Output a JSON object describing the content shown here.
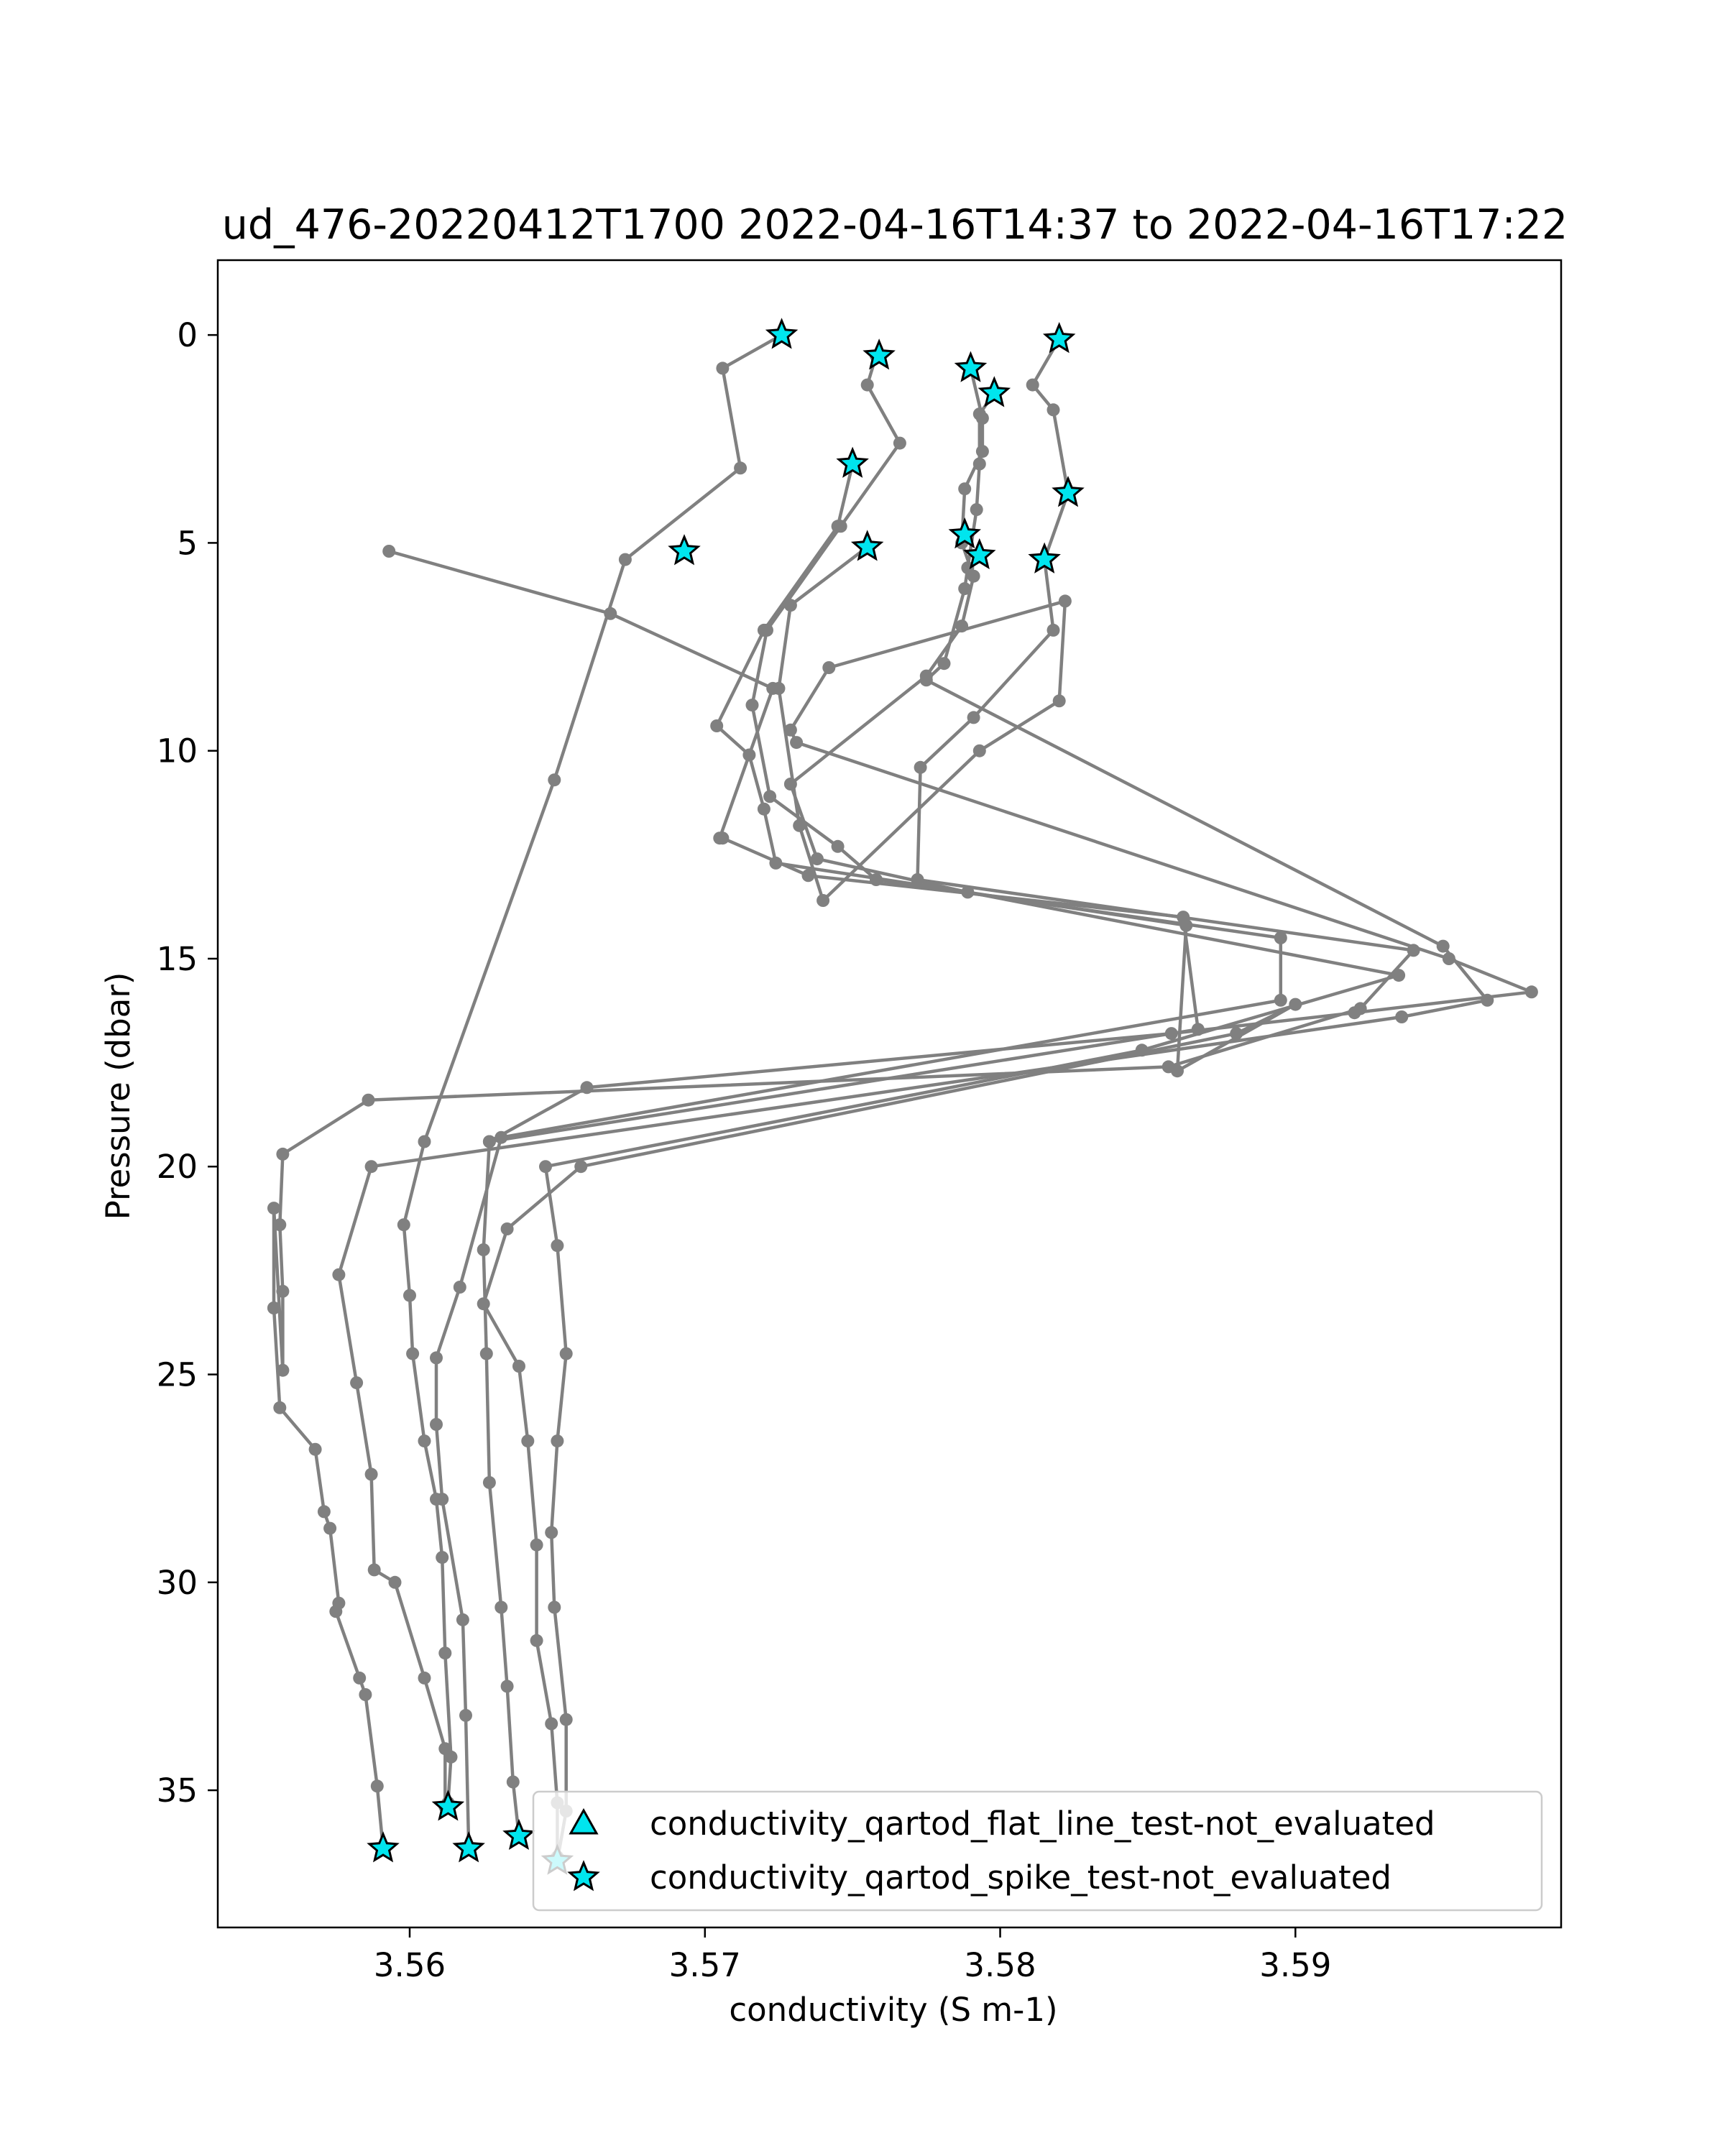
{
  "chart_data": {
    "type": "line",
    "title": "ud_476-20220412T1700 2022-04-16T14:37 to 2022-04-16T17:22",
    "xlabel": "conductivity (S m-1)",
    "ylabel": "Pressure (dbar)",
    "xlim": [
      3.5535,
      3.599
    ],
    "ylim": [
      38.3,
      -1.8
    ],
    "y_inverted": true,
    "grid": false,
    "xticks": [
      3.56,
      3.57,
      3.58,
      3.59
    ],
    "xtick_labels": [
      "3.56",
      "3.57",
      "3.58",
      "3.59"
    ],
    "yticks": [
      0,
      5,
      10,
      15,
      20,
      25,
      30,
      35
    ],
    "ytick_labels": [
      "0",
      "5",
      "10",
      "15",
      "20",
      "25",
      "30",
      "35"
    ],
    "line_color": "#808080",
    "marker_color": "#00e5ee",
    "legend": {
      "position": "lower-right",
      "entries": [
        {
          "label": "conductivity_qartod_flat_line_test-not_evaluated",
          "marker": "triangle"
        },
        {
          "label": "conductivity_qartod_spike_test-not_evaluated",
          "marker": "star"
        }
      ]
    },
    "series": [
      {
        "x": [
          3.5726,
          3.5706,
          3.5712,
          3.5673,
          3.5649,
          3.5605,
          3.5598,
          3.56,
          3.5601,
          3.5605,
          3.5609,
          3.5611,
          3.5612,
          3.5614,
          3.5613
        ],
        "y": [
          0.0,
          0.8,
          3.2,
          5.4,
          10.7,
          19.4,
          21.4,
          23.1,
          24.5,
          26.6,
          28.0,
          29.4,
          31.7,
          34.2,
          35.3
        ]
      },
      {
        "x": [
          3.5758,
          3.5755,
          3.5766,
          3.5746,
          3.5721,
          3.5716,
          3.5722,
          3.5745,
          3.5758,
          3.5895,
          3.5895,
          3.5631,
          3.5617,
          3.5609,
          3.5609,
          3.5611,
          3.5618,
          3.5619,
          3.562
        ],
        "y": [
          0.5,
          1.2,
          2.6,
          4.6,
          7.1,
          8.9,
          11.1,
          12.3,
          13.1,
          14.5,
          16.0,
          19.3,
          22.9,
          24.6,
          26.2,
          28.0,
          30.9,
          33.2,
          36.4
        ]
      },
      {
        "x": [
          3.5593,
          3.5668,
          3.5723,
          3.5705,
          3.5706,
          3.5735,
          3.5862,
          3.5867,
          3.5627,
          3.5625,
          3.5626,
          3.5627,
          3.5631,
          3.5633,
          3.5635,
          3.5637,
          3.5637
        ],
        "y": [
          5.2,
          6.7,
          8.5,
          12.1,
          12.1,
          13.0,
          14.0,
          16.7,
          19.4,
          22.0,
          24.5,
          27.6,
          30.6,
          32.5,
          34.8,
          36.1,
          36.1
        ]
      },
      {
        "x": [
          3.582,
          3.5811,
          3.5818,
          3.5823,
          3.5815,
          3.5818,
          3.5791,
          3.5773,
          3.5772,
          3.594,
          3.5922,
          3.5857,
          3.5586,
          3.5557,
          3.5556,
          3.5557,
          3.5557,
          3.5554,
          3.5554
        ],
        "y": [
          0.1,
          1.2,
          1.8,
          3.8,
          5.4,
          7.1,
          9.2,
          10.4,
          13.1,
          14.8,
          16.2,
          17.6,
          18.4,
          19.7,
          21.4,
          23.0,
          24.9,
          21.0,
          23.4
        ]
      },
      {
        "x": [
          3.5554,
          3.5556,
          3.5568,
          3.5571,
          3.5573,
          3.5576,
          3.5575,
          3.5583,
          3.5585,
          3.5589,
          3.5591
        ],
        "y": [
          23.4,
          25.8,
          26.8,
          28.3,
          28.7,
          30.5,
          30.7,
          32.3,
          32.7,
          34.9,
          36.4
        ]
      },
      {
        "x": [
          3.5798,
          3.5793,
          3.5793,
          3.5792,
          3.5789,
          3.5788,
          3.5781,
          3.5775,
          3.595,
          3.5965,
          3.5936,
          3.5587,
          3.5576,
          3.5582,
          3.5587,
          3.5588,
          3.5595,
          3.5605,
          3.5612,
          3.5612
        ],
        "y": [
          1.4,
          1.9,
          3.1,
          4.2,
          5.6,
          6.1,
          7.9,
          8.3,
          14.7,
          16.0,
          16.4,
          20.0,
          22.6,
          25.2,
          27.4,
          29.7,
          30.0,
          32.3,
          34.0,
          35.4
        ]
      },
      {
        "x": [
          3.579,
          3.5794,
          3.5794,
          3.5788,
          3.5787,
          3.5791,
          3.5787,
          3.5775,
          3.5729,
          3.5738,
          3.5789,
          3.5935,
          3.5848,
          3.5646,
          3.565,
          3.5653,
          3.565,
          3.5648,
          3.5649,
          3.5653,
          3.5653,
          3.565
        ],
        "y": [
          0.8,
          2.0,
          2.8,
          3.7,
          5.0,
          5.8,
          7.0,
          8.2,
          10.8,
          12.6,
          13.4,
          15.4,
          17.2,
          20.0,
          21.9,
          24.5,
          26.6,
          28.8,
          30.6,
          33.3,
          35.5,
          36.7
        ]
      },
      {
        "x": [
          3.575,
          3.5745,
          3.572,
          3.5704,
          3.5715,
          3.572,
          3.5724,
          3.5863,
          3.586,
          3.59,
          3.588,
          3.5658,
          3.5633,
          3.5625,
          3.5637,
          3.564,
          3.5643,
          3.5643,
          3.5648,
          3.565,
          3.565
        ],
        "y": [
          3.1,
          4.6,
          7.1,
          9.4,
          10.1,
          11.4,
          12.7,
          14.2,
          17.7,
          16.1,
          16.8,
          20.0,
          21.5,
          23.3,
          24.8,
          26.6,
          29.1,
          31.4,
          33.4,
          35.3,
          36.6
        ]
      },
      {
        "x": [
          3.5755,
          3.5729,
          3.5725,
          3.5732,
          3.574,
          3.5793,
          3.582,
          3.5822,
          3.5742,
          3.5729,
          3.5731,
          3.5952,
          3.598,
          3.592,
          3.5858,
          3.566,
          3.5627
        ],
        "y": [
          5.1,
          6.5,
          8.5,
          11.8,
          13.6,
          10.0,
          8.8,
          6.4,
          8.0,
          9.5,
          9.8,
          15.0,
          15.8,
          16.3,
          16.8,
          18.1,
          19.4
        ]
      }
    ],
    "flagged_points": {
      "label": "conductivity_qartod_spike_test-not_evaluated",
      "marker": "star",
      "x": [
        3.5726,
        3.5759,
        3.582,
        3.579,
        3.5798,
        3.575,
        3.5823,
        3.5788,
        3.5793,
        3.5815,
        3.5755,
        3.5693,
        3.5613,
        3.562,
        3.5637,
        3.5591,
        3.565
      ],
      "y": [
        0.0,
        0.5,
        0.1,
        0.8,
        1.4,
        3.1,
        3.8,
        4.8,
        5.3,
        5.4,
        5.1,
        5.2,
        35.4,
        36.4,
        36.1,
        36.4,
        36.7
      ]
    }
  }
}
